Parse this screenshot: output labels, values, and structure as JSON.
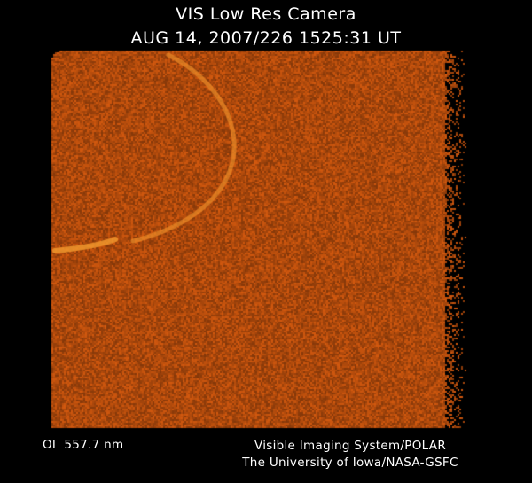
{
  "header": {
    "instrument": "VIS Low Res Camera",
    "timestamp": "AUG 14, 2007/226 1525:31 UT"
  },
  "image": {
    "subject": "auroral-oval",
    "base_color": "#b04c0c",
    "feature_color": "#f09a30"
  },
  "footer": {
    "filter": "OI  557.7 nm",
    "credit_line1": "Visible Imaging System/POLAR",
    "credit_line2": "The University of Iowa/NASA-GSFC"
  }
}
